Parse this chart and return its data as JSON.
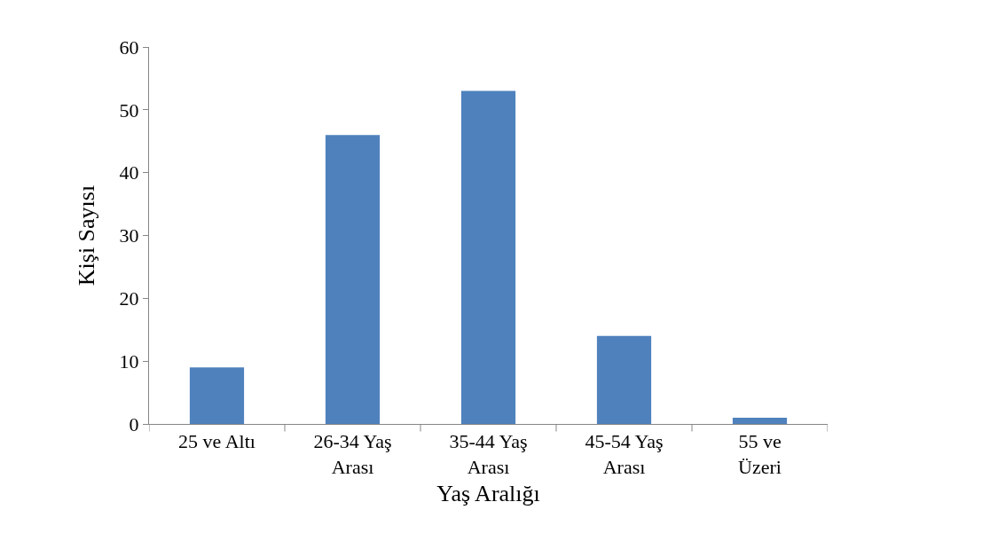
{
  "chart_data": {
    "type": "bar",
    "xlabel": "Yaş Aralığı",
    "ylabel": "Kişi Sayısı",
    "categories": [
      "25 ve Altı",
      "26-34 Yaş Arası",
      "35-44 Yaş Arası",
      "45-54 Yaş Arası",
      "55 ve Üzeri"
    ],
    "values": [
      9,
      46,
      53,
      14,
      1
    ],
    "color": "#4f81bd",
    "ylim": [
      0,
      60
    ],
    "yticks": [
      0,
      10,
      20,
      30,
      40,
      50,
      60
    ]
  }
}
